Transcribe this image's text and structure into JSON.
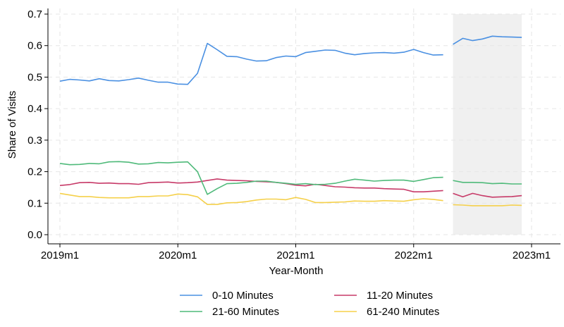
{
  "chart_data": {
    "type": "line",
    "xlabel": "Year-Month",
    "ylabel": "Share of Visits",
    "xlim": [
      0,
      49
    ],
    "ylim": [
      0,
      0.7
    ],
    "x_ticks": [
      {
        "x": 0,
        "label": "2019m1"
      },
      {
        "x": 12,
        "label": "2020m1"
      },
      {
        "x": 24,
        "label": "2021m1"
      },
      {
        "x": 36,
        "label": "2022m1"
      },
      {
        "x": 48,
        "label": "2023m1"
      }
    ],
    "y_ticks": [
      {
        "y": 0,
        "label": "0.0"
      },
      {
        "y": 0.1,
        "label": "0.1"
      },
      {
        "y": 0.2,
        "label": "0.2"
      },
      {
        "y": 0.3,
        "label": "0.3"
      },
      {
        "y": 0.4,
        "label": "0.4"
      },
      {
        "y": 0.5,
        "label": "0.5"
      },
      {
        "y": 0.6,
        "label": "0.6"
      },
      {
        "y": 0.7,
        "label": "0.7"
      }
    ],
    "grid": true,
    "shaded_region": {
      "x_start": 40,
      "x_end": 47,
      "color": "#f0f0f0"
    },
    "legend_position": "bottom",
    "series": [
      {
        "name": "0-10 Minutes",
        "color": "#4a90e2",
        "segments": [
          {
            "x": [
              0,
              1,
              2,
              3,
              4,
              5,
              6,
              7,
              8,
              9,
              10,
              11,
              12,
              13,
              14,
              15,
              16,
              17,
              18,
              19,
              20,
              21,
              22,
              23,
              24,
              25,
              26,
              27,
              28,
              29,
              30,
              31,
              32,
              33,
              34,
              35,
              36,
              37,
              38,
              39
            ],
            "y": [
              0.487,
              0.493,
              0.491,
              0.488,
              0.495,
              0.489,
              0.488,
              0.492,
              0.497,
              0.49,
              0.484,
              0.484,
              0.478,
              0.477,
              0.512,
              0.607,
              0.587,
              0.566,
              0.565,
              0.557,
              0.551,
              0.552,
              0.562,
              0.567,
              0.565,
              0.578,
              0.582,
              0.586,
              0.585,
              0.576,
              0.571,
              0.575,
              0.577,
              0.578,
              0.576,
              0.579,
              0.588,
              0.578,
              0.57,
              0.571
            ]
          },
          {
            "x": [
              40,
              41,
              42,
              43,
              44,
              45,
              46,
              47
            ],
            "y": [
              0.604,
              0.623,
              0.616,
              0.621,
              0.63,
              0.628,
              0.627,
              0.626
            ]
          }
        ]
      },
      {
        "name": "11-20 Minutes",
        "color": "#c73a68",
        "segments": [
          {
            "x": [
              0,
              1,
              2,
              3,
              4,
              5,
              6,
              7,
              8,
              9,
              10,
              11,
              12,
              13,
              14,
              15,
              16,
              17,
              18,
              19,
              20,
              21,
              22,
              23,
              24,
              25,
              26,
              27,
              28,
              29,
              30,
              31,
              32,
              33,
              34,
              35,
              36,
              37,
              38,
              39
            ],
            "y": [
              0.156,
              0.159,
              0.165,
              0.166,
              0.163,
              0.164,
              0.162,
              0.162,
              0.16,
              0.165,
              0.166,
              0.167,
              0.164,
              0.165,
              0.167,
              0.172,
              0.177,
              0.173,
              0.172,
              0.171,
              0.169,
              0.168,
              0.166,
              0.162,
              0.157,
              0.155,
              0.16,
              0.156,
              0.152,
              0.151,
              0.149,
              0.148,
              0.148,
              0.146,
              0.145,
              0.144,
              0.136,
              0.136,
              0.138,
              0.14
            ]
          },
          {
            "x": [
              40,
              41,
              42,
              43,
              44,
              45,
              46,
              47
            ],
            "y": [
              0.131,
              0.12,
              0.131,
              0.124,
              0.119,
              0.12,
              0.121,
              0.124
            ]
          }
        ]
      },
      {
        "name": "21-60 Minutes",
        "color": "#4fba7a",
        "segments": [
          {
            "x": [
              0,
              1,
              2,
              3,
              4,
              5,
              6,
              7,
              8,
              9,
              10,
              11,
              12,
              13,
              14,
              15,
              16,
              17,
              18,
              19,
              20,
              21,
              22,
              23,
              24,
              25,
              26,
              27,
              28,
              29,
              30,
              31,
              32,
              33,
              34,
              35,
              36,
              37,
              38,
              39
            ],
            "y": [
              0.226,
              0.222,
              0.223,
              0.226,
              0.225,
              0.231,
              0.232,
              0.23,
              0.224,
              0.225,
              0.229,
              0.228,
              0.23,
              0.231,
              0.2,
              0.128,
              0.146,
              0.162,
              0.163,
              0.166,
              0.17,
              0.17,
              0.166,
              0.163,
              0.16,
              0.162,
              0.159,
              0.16,
              0.163,
              0.17,
              0.176,
              0.173,
              0.17,
              0.172,
              0.173,
              0.173,
              0.169,
              0.175,
              0.181,
              0.182
            ]
          },
          {
            "x": [
              40,
              41,
              42,
              43,
              44,
              45,
              46,
              47
            ],
            "y": [
              0.172,
              0.166,
              0.166,
              0.165,
              0.162,
              0.163,
              0.161,
              0.161
            ]
          }
        ]
      },
      {
        "name": "61-240 Minutes",
        "color": "#f5d04a",
        "segments": [
          {
            "x": [
              0,
              1,
              2,
              3,
              4,
              5,
              6,
              7,
              8,
              9,
              10,
              11,
              12,
              13,
              14,
              15,
              16,
              17,
              18,
              19,
              20,
              21,
              22,
              23,
              24,
              25,
              26,
              27,
              28,
              29,
              30,
              31,
              32,
              33,
              34,
              35,
              36,
              37,
              38,
              39
            ],
            "y": [
              0.131,
              0.126,
              0.121,
              0.121,
              0.118,
              0.117,
              0.117,
              0.117,
              0.121,
              0.121,
              0.123,
              0.123,
              0.129,
              0.127,
              0.12,
              0.096,
              0.096,
              0.101,
              0.102,
              0.105,
              0.11,
              0.113,
              0.113,
              0.111,
              0.118,
              0.112,
              0.102,
              0.102,
              0.103,
              0.104,
              0.107,
              0.106,
              0.106,
              0.108,
              0.107,
              0.106,
              0.111,
              0.114,
              0.112,
              0.108
            ]
          },
          {
            "x": [
              40,
              41,
              42,
              43,
              44,
              45,
              46,
              47
            ],
            "y": [
              0.095,
              0.094,
              0.092,
              0.092,
              0.092,
              0.092,
              0.094,
              0.093
            ]
          }
        ]
      }
    ]
  }
}
